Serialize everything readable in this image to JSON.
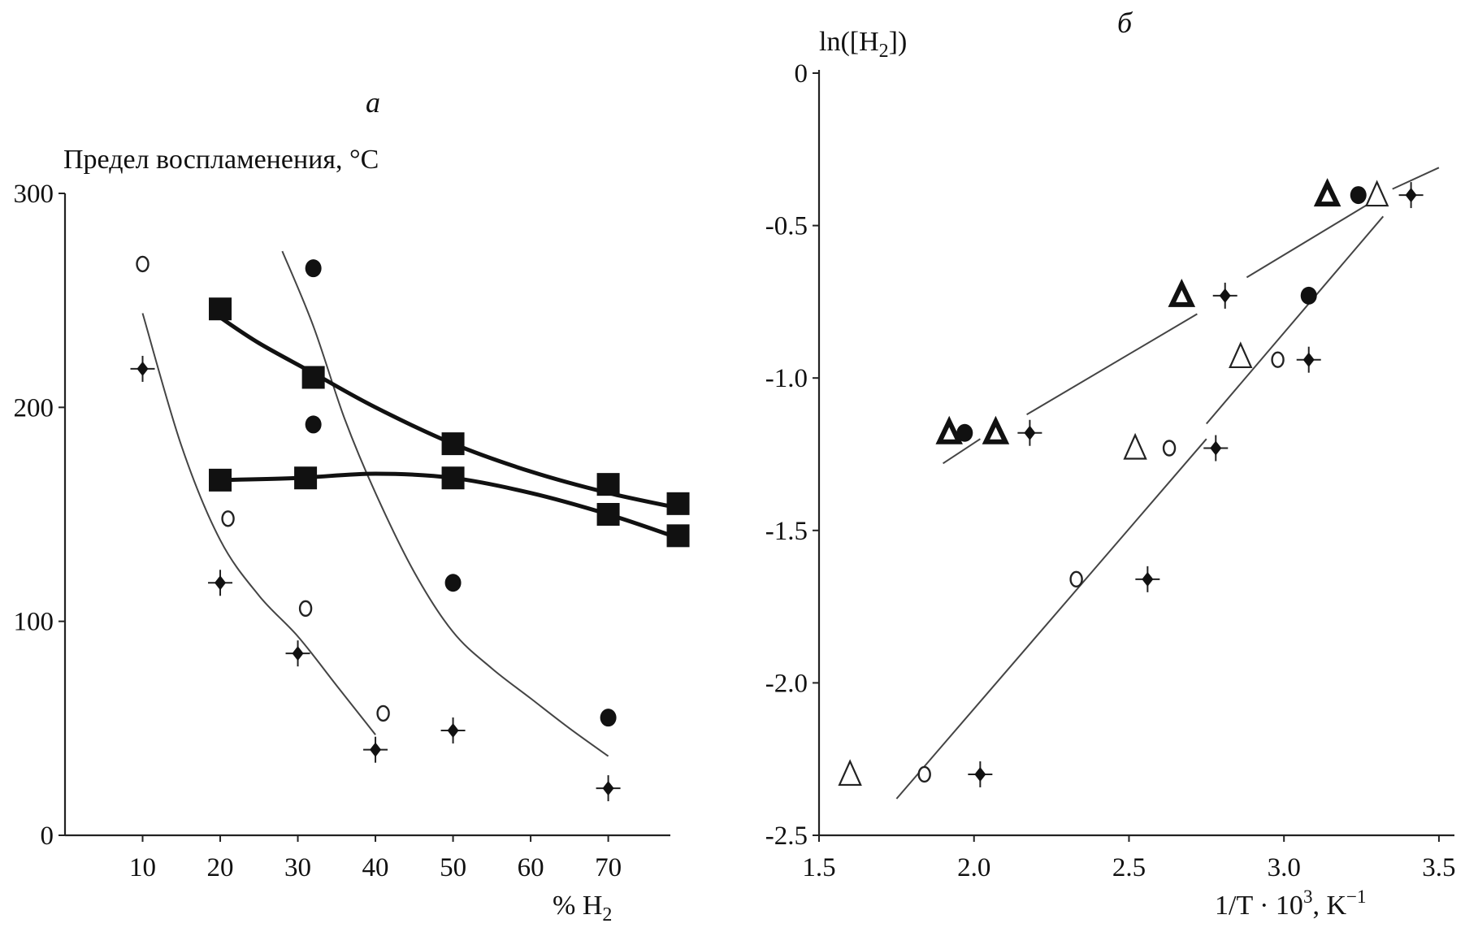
{
  "chart_data": [
    {
      "panel": "a",
      "type": "scatter",
      "title": "а",
      "ylabel": "Предел воспламенения, °С",
      "xlabel": "% H",
      "xlabel_sub": "2",
      "xlim": [
        0,
        78
      ],
      "ylim": [
        0,
        300
      ],
      "xticks": [
        10,
        20,
        30,
        40,
        50,
        60,
        70
      ],
      "yticks": [
        0,
        100,
        200,
        300
      ],
      "series": [
        {
          "name": "open-circle",
          "marker": "open-circle",
          "x": [
            10,
            21,
            31,
            41
          ],
          "y": [
            267,
            148,
            106,
            57
          ]
        },
        {
          "name": "cross-diamond-1",
          "marker": "cross-diamond",
          "x": [
            10,
            20,
            30,
            40
          ],
          "y": [
            218,
            118,
            85,
            40
          ]
        },
        {
          "name": "filled-circle",
          "marker": "filled-circle",
          "x": [
            32,
            32,
            50,
            70
          ],
          "y": [
            265,
            192,
            118,
            55
          ]
        },
        {
          "name": "cross-diamond-2",
          "marker": "cross-diamond",
          "x": [
            50,
            70
          ],
          "y": [
            49,
            22
          ]
        },
        {
          "name": "filled-square-upper",
          "marker": "filled-square",
          "x": [
            20,
            32,
            50,
            70,
            79
          ],
          "y": [
            246,
            214,
            183,
            164,
            155
          ]
        },
        {
          "name": "filled-square-lower",
          "marker": "filled-square",
          "x": [
            20,
            31,
            50,
            70,
            79
          ],
          "y": [
            166,
            167,
            167,
            150,
            140
          ]
        }
      ],
      "curves": [
        {
          "name": "fit-thin-left",
          "style": "thin",
          "x": [
            10,
            15,
            20,
            25,
            30,
            35,
            40
          ],
          "y": [
            244,
            182,
            138,
            112,
            93,
            70,
            47
          ]
        },
        {
          "name": "fit-thin-right",
          "style": "thin",
          "x": [
            28,
            32,
            36,
            40,
            45,
            50,
            55,
            60,
            65,
            70
          ],
          "y": [
            273,
            238,
            195,
            160,
            123,
            95,
            78,
            64,
            50,
            37
          ]
        },
        {
          "name": "fit-thick-upper",
          "style": "thick",
          "x": [
            20,
            25,
            32,
            40,
            50,
            60,
            70,
            79
          ],
          "y": [
            242,
            230,
            216,
            200,
            183,
            170,
            160,
            153
          ]
        },
        {
          "name": "fit-thick-lower",
          "style": "thick",
          "x": [
            20,
            30,
            40,
            50,
            60,
            70,
            79
          ],
          "y": [
            166,
            167,
            169,
            167,
            160,
            150,
            139
          ]
        }
      ]
    },
    {
      "panel": "b",
      "type": "scatter",
      "title": "б",
      "ylabel": "ln([H",
      "ylabel_sub": "2",
      "ylabel_end": "])",
      "xlabel": "1/T · 10",
      "xlabel_sup": "3",
      "xlabel_end": ", K",
      "xlabel_sup2": "−1",
      "xlim": [
        1.5,
        3.55
      ],
      "ylim": [
        -2.5,
        0
      ],
      "xticks": [
        "1.5",
        "2.0",
        "2.5",
        "3.0",
        "3.5"
      ],
      "yticks": [
        "0",
        "-0.5",
        "-1.0",
        "-1.5",
        "-2.0",
        "-2.5"
      ],
      "series": [
        {
          "name": "filled-triangle",
          "marker": "filled-triangle",
          "x": [
            1.92,
            2.07,
            2.67,
            3.14
          ],
          "y": [
            -1.18,
            -1.18,
            -0.73,
            -0.4
          ]
        },
        {
          "name": "filled-circle",
          "marker": "filled-circle",
          "x": [
            1.97,
            3.24,
            3.08
          ],
          "y": [
            -1.18,
            -0.4,
            -0.73
          ]
        },
        {
          "name": "cross-diamond-filled",
          "marker": "cross-diamond",
          "x": [
            2.18,
            2.81,
            3.41
          ],
          "y": [
            -1.18,
            -0.73,
            -0.4
          ]
        },
        {
          "name": "open-triangle",
          "marker": "open-triangle",
          "x": [
            1.6,
            2.52,
            2.86,
            3.3
          ],
          "y": [
            -2.3,
            -1.23,
            -0.93,
            -0.4
          ]
        },
        {
          "name": "open-circle",
          "marker": "open-circle",
          "x": [
            1.84,
            2.33,
            2.63,
            2.98
          ],
          "y": [
            -2.3,
            -1.66,
            -1.23,
            -0.94
          ]
        },
        {
          "name": "cross-diamond-open",
          "marker": "cross-diamond",
          "x": [
            2.02,
            2.56,
            2.78,
            3.08
          ],
          "y": [
            -2.3,
            -1.66,
            -1.23,
            -0.94
          ]
        }
      ],
      "curves": [
        {
          "name": "fit-upper",
          "style": "thin",
          "segments": [
            [
              [
                1.9,
                -1.28
              ],
              [
                2.02,
                -1.2
              ]
            ],
            [
              [
                2.17,
                -1.12
              ],
              [
                2.72,
                -0.79
              ]
            ],
            [
              [
                2.88,
                -0.67
              ],
              [
                3.32,
                -0.4
              ]
            ],
            [
              [
                3.35,
                -0.38
              ],
              [
                3.5,
                -0.31
              ]
            ]
          ]
        },
        {
          "name": "fit-lower",
          "style": "thin",
          "segments": [
            [
              [
                1.75,
                -2.38
              ],
              [
                2.75,
                -1.2
              ]
            ],
            [
              [
                2.75,
                -1.15
              ],
              [
                3.32,
                -0.47
              ]
            ]
          ]
        }
      ]
    }
  ]
}
